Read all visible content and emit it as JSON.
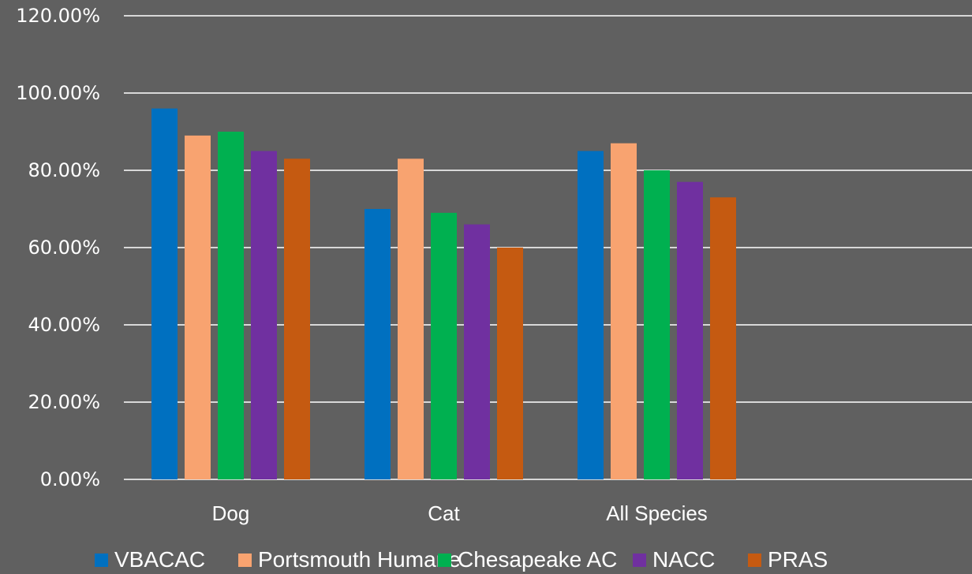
{
  "chart_data": {
    "type": "bar",
    "title": "",
    "xlabel": "",
    "ylabel": "",
    "categories": [
      "Dog",
      "Cat",
      "All Species"
    ],
    "ylim": [
      0,
      120
    ],
    "yticks": [
      "0.00%",
      "20.00%",
      "40.00%",
      "60.00%",
      "80.00%",
      "100.00%",
      "120.00%"
    ],
    "grid": true,
    "legend": "bottom",
    "series": [
      {
        "name": "VBACAC",
        "color": "#0070c0",
        "values": [
          96,
          70,
          85
        ]
      },
      {
        "name": "Portsmouth Humane",
        "color": "#f8a370",
        "values": [
          89,
          83,
          87
        ]
      },
      {
        "name": "Chesapeake AC",
        "color": "#00b050",
        "values": [
          90,
          69,
          80
        ]
      },
      {
        "name": "NACC",
        "color": "#7030a0",
        "values": [
          85,
          66,
          77
        ]
      },
      {
        "name": "PRAS",
        "color": "#c55a11",
        "values": [
          83,
          60,
          73
        ]
      }
    ]
  }
}
